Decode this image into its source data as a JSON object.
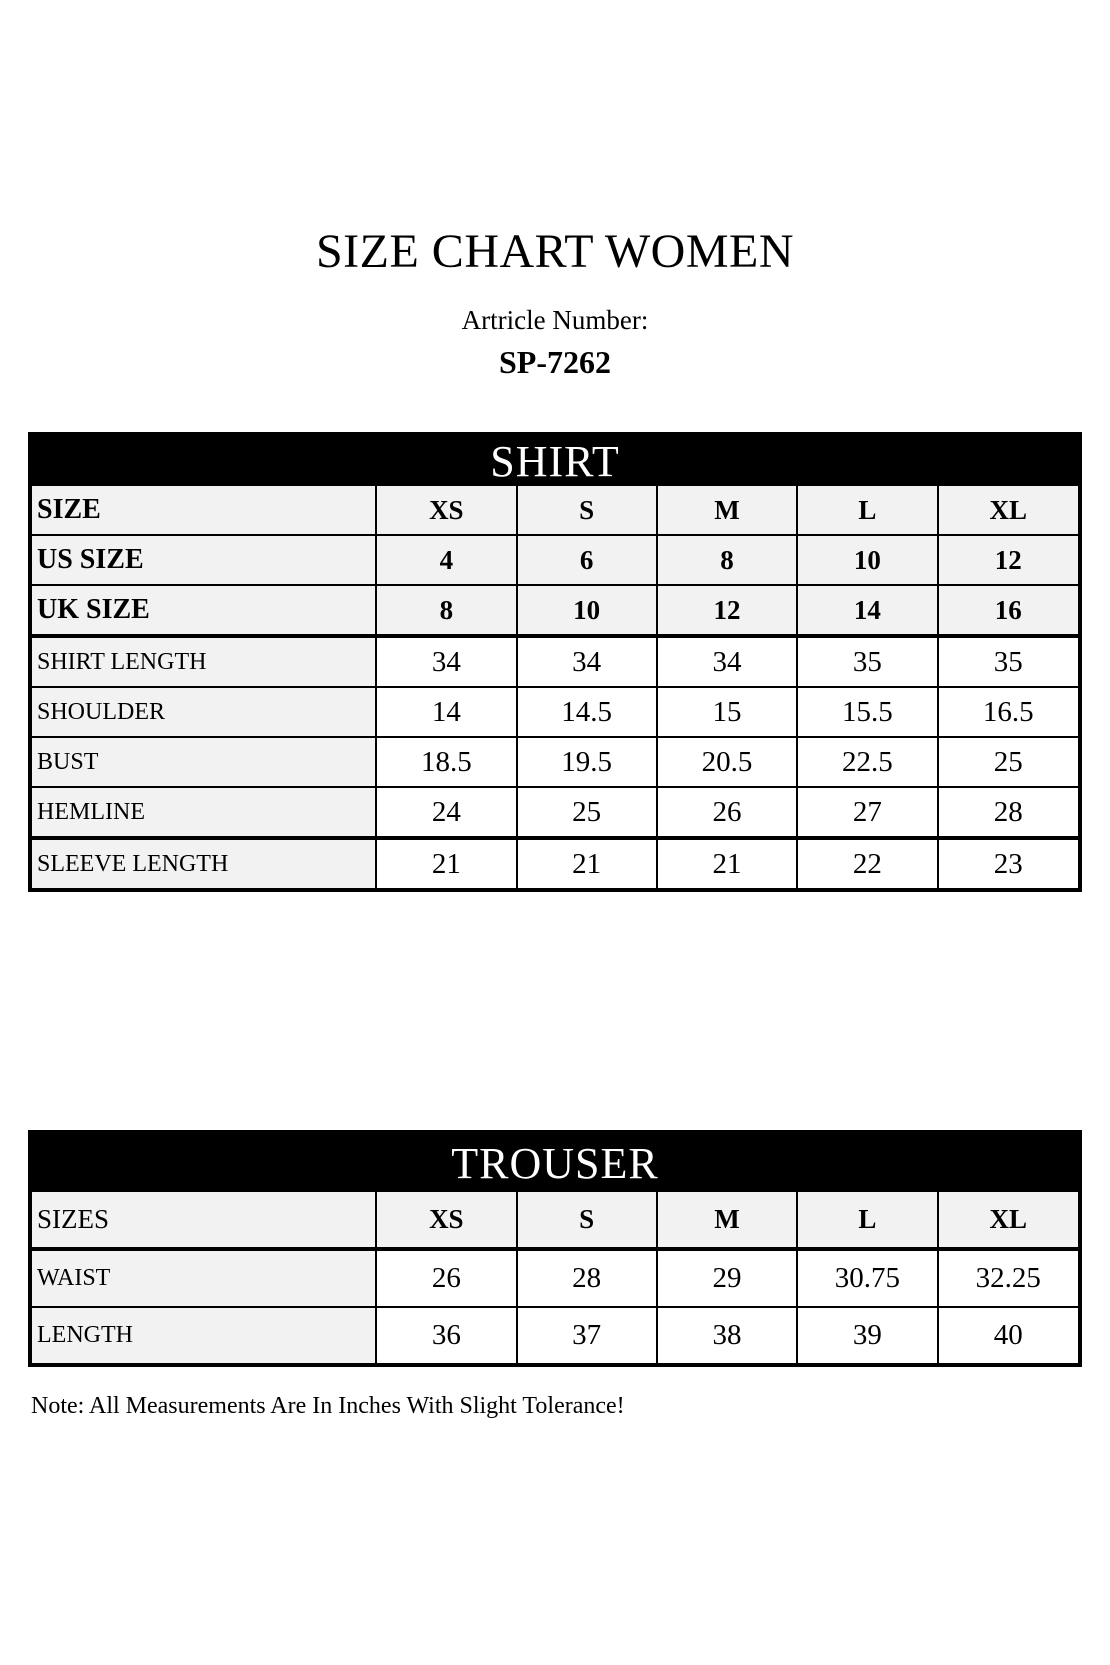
{
  "page": {
    "title": "SIZE CHART WOMEN",
    "article_label": "Artricle Number:",
    "article_number": "SP-7262",
    "note": "Note: All Measurements Are In Inches With Slight Tolerance!"
  },
  "colors": {
    "band_background": "#000000",
    "band_text": "#ffffff",
    "shaded_cell": "#f2f2f2",
    "value_cell": "#ffffff",
    "border": "#000000"
  },
  "tables": [
    {
      "title": "SHIRT",
      "size_rows": [
        {
          "label": "SIZE",
          "label_bold": true,
          "values": [
            "XS",
            "S",
            "M",
            "L",
            "XL"
          ]
        },
        {
          "label": "US SIZE",
          "label_bold": true,
          "values": [
            "4",
            "6",
            "8",
            "10",
            "12"
          ]
        },
        {
          "label": "UK SIZE",
          "label_bold": true,
          "values": [
            "8",
            "10",
            "12",
            "14",
            "16"
          ]
        }
      ],
      "measure_rows": [
        {
          "label": "SHIRT LENGTH",
          "values": [
            "34",
            "34",
            "34",
            "35",
            "35"
          ]
        },
        {
          "label": "SHOULDER",
          "values": [
            "14",
            "14.5",
            "15",
            "15.5",
            "16.5"
          ]
        },
        {
          "label": "BUST",
          "values": [
            "18.5",
            "19.5",
            "20.5",
            "22.5",
            "25"
          ]
        },
        {
          "label": "HEMLINE",
          "values": [
            "24",
            "25",
            "26",
            "27",
            "28"
          ]
        },
        {
          "label": "SLEEVE LENGTH",
          "values": [
            "21",
            "21",
            "21",
            "22",
            "23"
          ]
        }
      ]
    },
    {
      "title": "TROUSER",
      "size_rows": [
        {
          "label": "SIZES",
          "label_bold": false,
          "values": [
            "XS",
            "S",
            "M",
            "L",
            "XL"
          ]
        }
      ],
      "measure_rows": [
        {
          "label": "WAIST",
          "values": [
            "26",
            "28",
            "29",
            "30.75",
            "32.25"
          ]
        },
        {
          "label": "LENGTH",
          "values": [
            "36",
            "37",
            "38",
            "39",
            "40"
          ]
        }
      ]
    }
  ]
}
